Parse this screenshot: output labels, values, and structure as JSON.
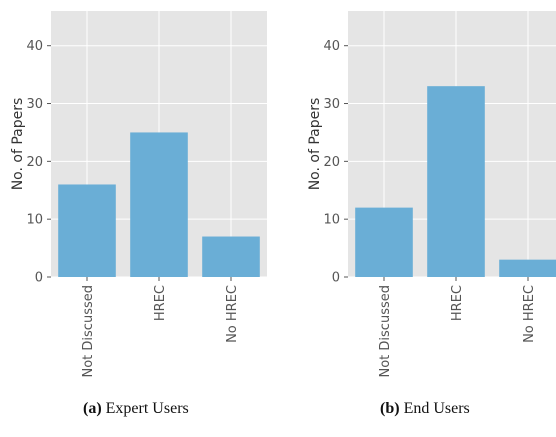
{
  "colors": {
    "bar": "#6aaed6",
    "panel_background": "#e5e5e5",
    "grid": "#ffffff"
  },
  "chart_data": [
    {
      "type": "bar",
      "caption_tag": "(a)",
      "caption_text": "Expert Users",
      "ylabel": "No. of Papers",
      "categories": [
        "Not Discussed",
        "HREC",
        "No HREC"
      ],
      "values": [
        16,
        25,
        7
      ],
      "ylim": [
        0,
        46
      ],
      "yticks": [
        0,
        10,
        20,
        30,
        40
      ],
      "grid": true
    },
    {
      "type": "bar",
      "caption_tag": "(b)",
      "caption_text": "End Users",
      "ylabel": "No. of Papers",
      "categories": [
        "Not Discussed",
        "HREC",
        "No HREC"
      ],
      "values": [
        12,
        33,
        3
      ],
      "ylim": [
        0,
        46
      ],
      "yticks": [
        0,
        10,
        20,
        30,
        40
      ],
      "grid": true
    }
  ]
}
